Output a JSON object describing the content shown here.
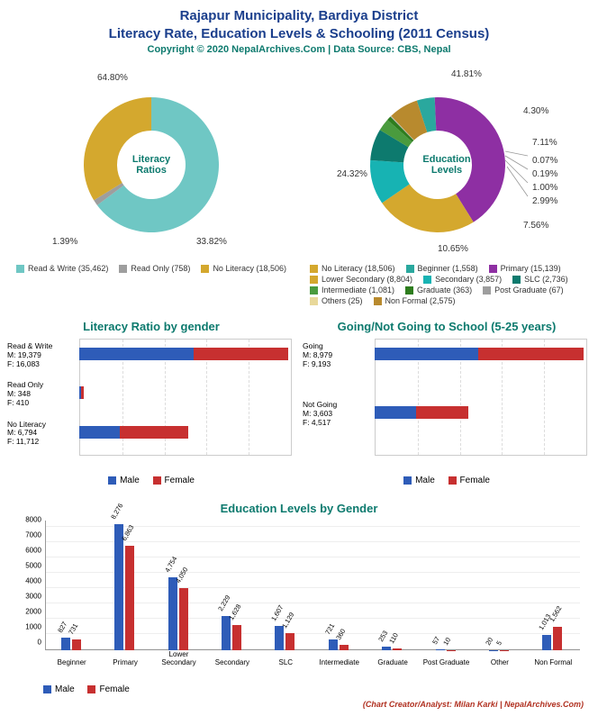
{
  "title_line1": "Rajapur Municipality, Bardiya District",
  "title_line2": "Literacy Rate, Education Levels & Schooling (2011 Census)",
  "subtitle": "Copyright © 2020 NepalArchives.Com | Data Source: CBS, Nepal",
  "credit": "(Chart Creator/Analyst: Milan Karki | NepalArchives.Com)",
  "colors": {
    "male": "#2e5cb8",
    "female": "#c73030",
    "teal_title": "#0d7a6e",
    "blue_title": "#1a3e8c"
  },
  "donut1": {
    "center_label": "Literacy Ratios",
    "slices": [
      {
        "label": "Read & Write (35,462)",
        "pct": 64.8,
        "color": "#6fc7c4",
        "pct_text": "64.80%"
      },
      {
        "label": "Read Only (758)",
        "pct": 1.39,
        "color": "#9e9e9e",
        "pct_text": "1.39%"
      },
      {
        "label": "No Literacy (18,506)",
        "pct": 33.82,
        "color": "#d4a82e",
        "pct_text": "33.82%"
      }
    ]
  },
  "donut2": {
    "center_label": "Education Levels",
    "slices": [
      {
        "label": "Beginner (1,558)",
        "pct": 4.3,
        "color": "#2aa89e",
        "pct_text": "4.30%"
      },
      {
        "label": "Primary (15,139)",
        "pct": 41.81,
        "color": "#8e2fa3",
        "pct_text": "41.81%"
      },
      {
        "label": "Lower Secondary (8,804)",
        "pct": 24.32,
        "color": "#d4a82e",
        "pct_text": "24.32%"
      },
      {
        "label": "Secondary (3,857)",
        "pct": 10.65,
        "color": "#17b3b3",
        "pct_text": "10.65%"
      },
      {
        "label": "SLC (2,736)",
        "pct": 7.56,
        "color": "#0d7a6e",
        "pct_text": "7.56%"
      },
      {
        "label": "Intermediate (1,081)",
        "pct": 2.99,
        "color": "#4a9b3e",
        "pct_text": "2.99%"
      },
      {
        "label": "Graduate (363)",
        "pct": 1.0,
        "color": "#2e7d1e",
        "pct_text": "1.00%"
      },
      {
        "label": "Post Graduate (67)",
        "pct": 0.19,
        "color": "#9e9e9e",
        "pct_text": "0.19%"
      },
      {
        "label": "Others (25)",
        "pct": 0.07,
        "color": "#e8d89a",
        "pct_text": "0.07%"
      },
      {
        "label": "Non Formal (2,575)",
        "pct": 7.11,
        "color": "#b88a2e",
        "pct_text": "7.11%"
      }
    ]
  },
  "legend2_order": [
    {
      "label": "No Literacy (18,506)",
      "color": "#d4a82e"
    },
    {
      "label": "Beginner (1,558)",
      "color": "#2aa89e"
    },
    {
      "label": "Primary (15,139)",
      "color": "#8e2fa3"
    },
    {
      "label": "Lower Secondary (8,804)",
      "color": "#d4a82e"
    },
    {
      "label": "Secondary (3,857)",
      "color": "#17b3b3"
    },
    {
      "label": "SLC (2,736)",
      "color": "#0d7a6e"
    },
    {
      "label": "Intermediate (1,081)",
      "color": "#4a9b3e"
    },
    {
      "label": "Graduate (363)",
      "color": "#2e7d1e"
    },
    {
      "label": "Post Graduate (67)",
      "color": "#9e9e9e"
    },
    {
      "label": "Others (25)",
      "color": "#e8d89a"
    },
    {
      "label": "Non Formal (2,575)",
      "color": "#b88a2e"
    }
  ],
  "hbar1": {
    "title": "Literacy Ratio by gender",
    "max": 36000,
    "rows": [
      {
        "name": "Read & Write",
        "m": 19379,
        "f": 16083,
        "m_text": "M: 19,379",
        "f_text": "F: 16,083"
      },
      {
        "name": "Read Only",
        "m": 348,
        "f": 410,
        "m_text": "M: 348",
        "f_text": "F: 410"
      },
      {
        "name": "No Literacy",
        "m": 6794,
        "f": 11712,
        "m_text": "M: 6,794",
        "f_text": "F: 11,712"
      }
    ],
    "legend": {
      "male": "Male",
      "female": "Female"
    }
  },
  "hbar2": {
    "title": "Going/Not Going to School (5-25 years)",
    "max": 18500,
    "rows": [
      {
        "name": "Going",
        "m": 8979,
        "f": 9193,
        "m_text": "M: 8,979",
        "f_text": "F: 9,193"
      },
      {
        "name": "Not Going",
        "m": 3603,
        "f": 4517,
        "m_text": "M: 3,603",
        "f_text": "F: 4,517"
      }
    ],
    "legend": {
      "male": "Male",
      "female": "Female"
    }
  },
  "vbar": {
    "title": "Education Levels by Gender",
    "ymax": 8500,
    "ytick_step": 1000,
    "categories": [
      "Beginner",
      "Primary",
      "Lower Secondary",
      "Secondary",
      "SLC",
      "Intermediate",
      "Graduate",
      "Post Graduate",
      "Other",
      "Non Formal"
    ],
    "male": [
      827,
      8276,
      4754,
      2229,
      1607,
      721,
      253,
      57,
      20,
      1013
    ],
    "female": [
      731,
      6863,
      4050,
      1628,
      1129,
      360,
      110,
      10,
      5,
      1562
    ],
    "male_text": [
      "827",
      "8,276",
      "4,754",
      "2,229",
      "1,607",
      "721",
      "253",
      "57",
      "20",
      "1,013"
    ],
    "female_text": [
      "731",
      "6,863",
      "4,050",
      "1,628",
      "1,129",
      "360",
      "110",
      "10",
      "5",
      "1,562"
    ],
    "legend": {
      "male": "Male",
      "female": "Female"
    }
  }
}
